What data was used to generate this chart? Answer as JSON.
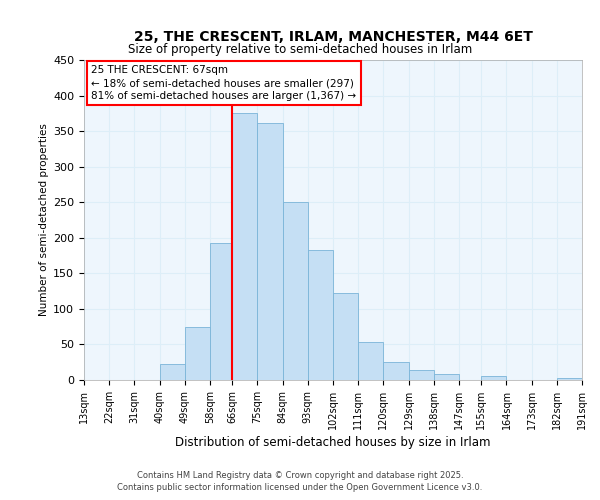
{
  "title": "25, THE CRESCENT, IRLAM, MANCHESTER, M44 6ET",
  "subtitle": "Size of property relative to semi-detached houses in Irlam",
  "xlabel": "Distribution of semi-detached houses by size in Irlam",
  "ylabel": "Number of semi-detached properties",
  "bar_color": "#c5dff4",
  "bar_edge_color": "#7ab4d8",
  "grid_color": "#ddeef8",
  "background_color": "#eef6fd",
  "red_line_x": 66,
  "bins": [
    13,
    22,
    31,
    40,
    49,
    58,
    66,
    75,
    84,
    93,
    102,
    111,
    120,
    129,
    138,
    147,
    155,
    164,
    173,
    182,
    191
  ],
  "bin_labels": [
    "13sqm",
    "22sqm",
    "31sqm",
    "40sqm",
    "49sqm",
    "58sqm",
    "66sqm",
    "75sqm",
    "84sqm",
    "93sqm",
    "102sqm",
    "111sqm",
    "120sqm",
    "129sqm",
    "138sqm",
    "147sqm",
    "155sqm",
    "164sqm",
    "173sqm",
    "182sqm",
    "191sqm"
  ],
  "heights": [
    0,
    0,
    0,
    23,
    75,
    193,
    375,
    362,
    250,
    183,
    122,
    53,
    25,
    14,
    8,
    0,
    6,
    0,
    0,
    3
  ],
  "ylim": [
    0,
    450
  ],
  "yticks": [
    0,
    50,
    100,
    150,
    200,
    250,
    300,
    350,
    400,
    450
  ],
  "annotation_title": "25 THE CRESCENT: 67sqm",
  "annotation_line1": "← 18% of semi-detached houses are smaller (297)",
  "annotation_line2": "81% of semi-detached houses are larger (1,367) →",
  "footer_line1": "Contains HM Land Registry data © Crown copyright and database right 2025.",
  "footer_line2": "Contains public sector information licensed under the Open Government Licence v3.0."
}
